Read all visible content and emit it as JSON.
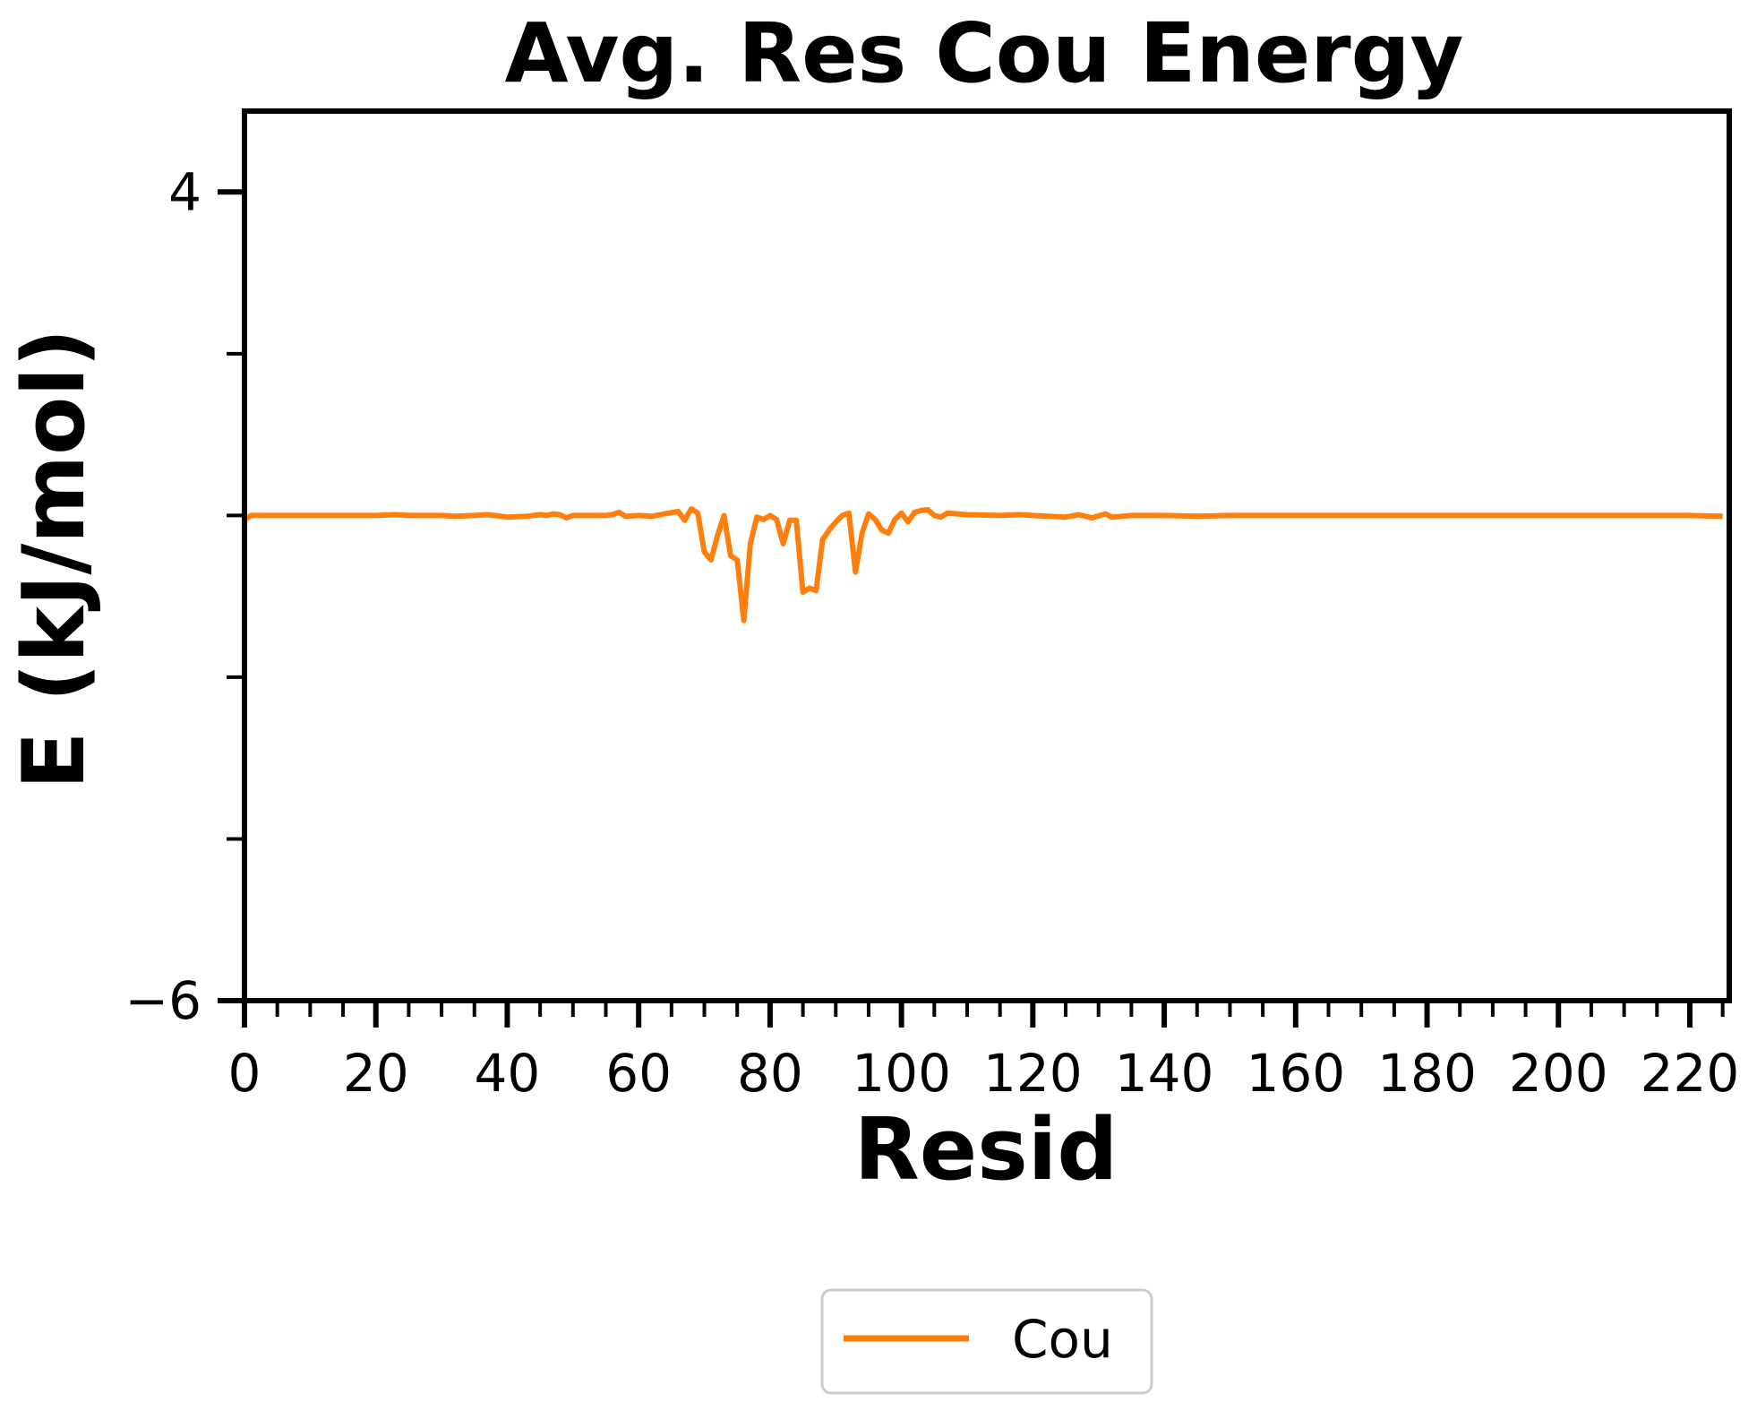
{
  "chart_data": {
    "type": "line",
    "title": "Avg. Res Cou Energy",
    "xlabel": "Resid",
    "ylabel": "E (kJ/mol)",
    "xlim": [
      0,
      226
    ],
    "ylim": [
      -6,
      5
    ],
    "x_ticks": [
      0,
      20,
      40,
      60,
      80,
      100,
      120,
      140,
      160,
      180,
      200,
      220
    ],
    "x_minor_step": 5,
    "y_ticks": [
      4,
      2,
      0,
      -2,
      -4,
      -6
    ],
    "y_tick_labels": [
      "4",
      "",
      "",
      "",
      "",
      "−6"
    ],
    "grid": false,
    "legend_position": "bottom-center",
    "series": [
      {
        "name": "Cou",
        "color": "#ff7f0e",
        "points": [
          [
            0,
            -0.05
          ],
          [
            1,
            0.0
          ],
          [
            5,
            0.0
          ],
          [
            10,
            0.0
          ],
          [
            15,
            0.0
          ],
          [
            20,
            0.0
          ],
          [
            23,
            0.01
          ],
          [
            25,
            0.0
          ],
          [
            30,
            0.0
          ],
          [
            32,
            -0.01
          ],
          [
            35,
            0.0
          ],
          [
            37,
            0.01
          ],
          [
            38,
            0.0
          ],
          [
            40,
            -0.02
          ],
          [
            43,
            -0.01
          ],
          [
            45,
            0.01
          ],
          [
            46,
            0.0
          ],
          [
            47,
            0.02
          ],
          [
            48,
            0.01
          ],
          [
            49,
            -0.03
          ],
          [
            50,
            0.0
          ],
          [
            55,
            0.0
          ],
          [
            56,
            0.01
          ],
          [
            57,
            0.04
          ],
          [
            58,
            -0.01
          ],
          [
            60,
            0.0
          ],
          [
            62,
            -0.01
          ],
          [
            64,
            0.02
          ],
          [
            66,
            0.05
          ],
          [
            67,
            -0.06
          ],
          [
            68,
            0.08
          ],
          [
            69,
            0.03
          ],
          [
            70,
            -0.45
          ],
          [
            71,
            -0.55
          ],
          [
            72,
            -0.25
          ],
          [
            73,
            0.0
          ],
          [
            74,
            -0.5
          ],
          [
            75,
            -0.55
          ],
          [
            76,
            -1.3
          ],
          [
            77,
            -0.35
          ],
          [
            78,
            -0.02
          ],
          [
            79,
            -0.05
          ],
          [
            80,
            0.0
          ],
          [
            81,
            -0.05
          ],
          [
            82,
            -0.35
          ],
          [
            83,
            -0.06
          ],
          [
            84,
            -0.06
          ],
          [
            85,
            -0.95
          ],
          [
            86,
            -0.9
          ],
          [
            87,
            -0.93
          ],
          [
            88,
            -0.3
          ],
          [
            89,
            -0.18
          ],
          [
            90,
            -0.08
          ],
          [
            91,
            0.0
          ],
          [
            92,
            0.03
          ],
          [
            93,
            -0.7
          ],
          [
            94,
            -0.22
          ],
          [
            95,
            0.02
          ],
          [
            96,
            -0.05
          ],
          [
            97,
            -0.18
          ],
          [
            98,
            -0.22
          ],
          [
            99,
            -0.05
          ],
          [
            100,
            0.03
          ],
          [
            101,
            -0.08
          ],
          [
            102,
            0.04
          ],
          [
            103,
            0.06
          ],
          [
            104,
            0.07
          ],
          [
            105,
            0.0
          ],
          [
            106,
            -0.02
          ],
          [
            107,
            0.03
          ],
          [
            110,
            0.01
          ],
          [
            115,
            0.0
          ],
          [
            118,
            0.01
          ],
          [
            120,
            0.0
          ],
          [
            125,
            -0.02
          ],
          [
            127,
            0.01
          ],
          [
            129,
            -0.03
          ],
          [
            131,
            0.02
          ],
          [
            132,
            -0.02
          ],
          [
            135,
            0.0
          ],
          [
            140,
            0.0
          ],
          [
            145,
            -0.01
          ],
          [
            150,
            0.0
          ],
          [
            160,
            0.0
          ],
          [
            170,
            0.0
          ],
          [
            180,
            0.0
          ],
          [
            190,
            0.0
          ],
          [
            200,
            0.0
          ],
          [
            210,
            0.0
          ],
          [
            220,
            0.0
          ],
          [
            225,
            -0.01
          ]
        ]
      }
    ]
  }
}
